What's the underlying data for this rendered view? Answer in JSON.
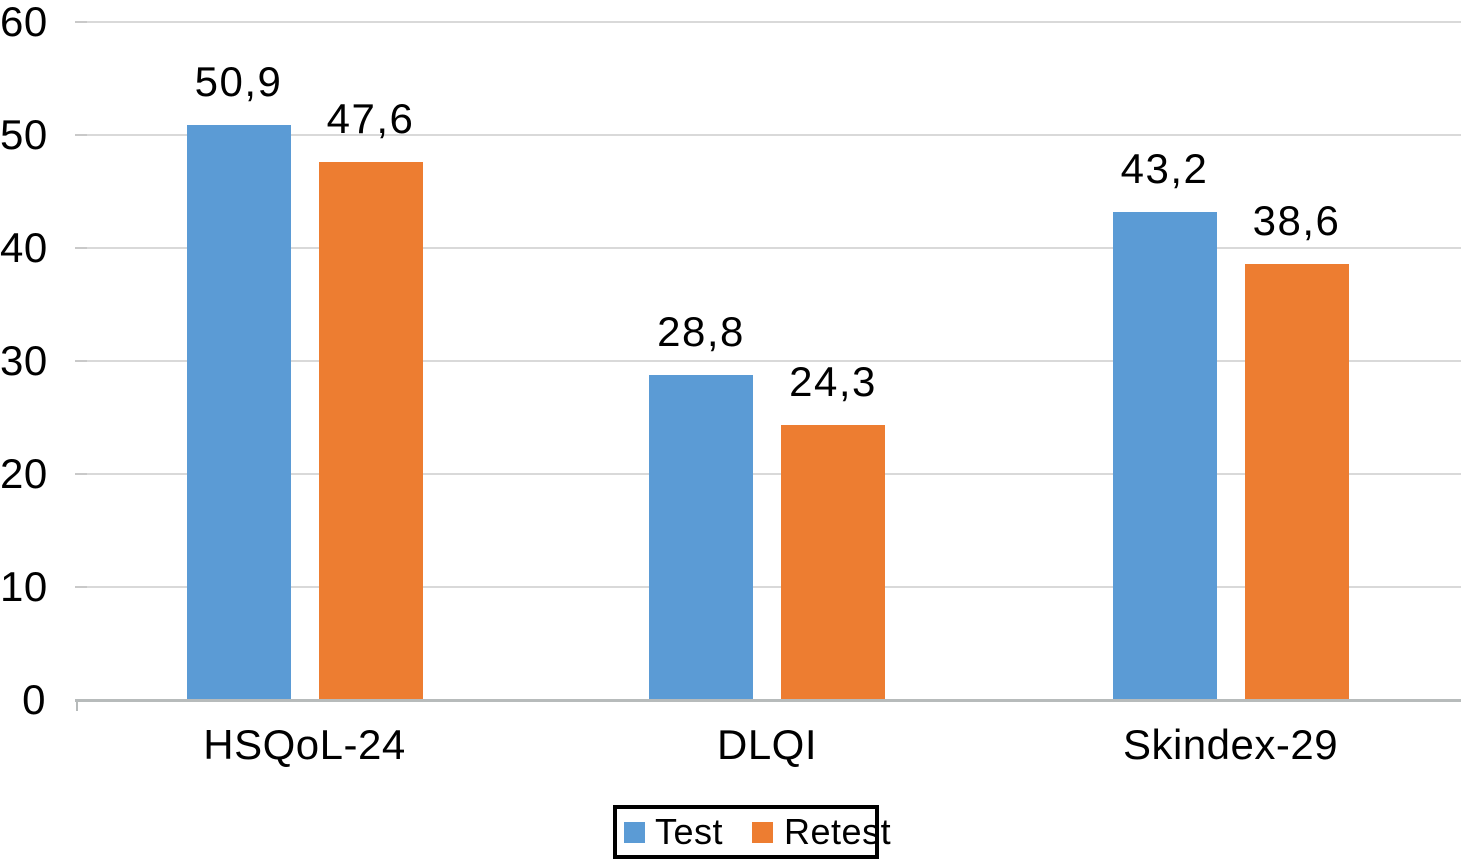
{
  "chart_data": {
    "type": "bar",
    "title": "",
    "xlabel": "",
    "ylabel": "",
    "categories": [
      "HSQoL-24",
      "DLQI",
      "Skindex-29"
    ],
    "series": [
      {
        "name": "Test",
        "color": "#5B9BD5",
        "values": [
          50.9,
          28.8,
          43.2
        ],
        "labels": [
          "50,9",
          "28,8",
          "43,2"
        ]
      },
      {
        "name": "Retest",
        "color": "#ED7D31",
        "values": [
          47.6,
          24.3,
          38.6
        ],
        "labels": [
          "47,6",
          "24,3",
          "38,6"
        ]
      }
    ],
    "ylim": [
      0,
      60
    ],
    "yticks": [
      0,
      10,
      20,
      30,
      40,
      50,
      60
    ],
    "ytick_labels": [
      "0",
      "10",
      "20",
      "30",
      "40",
      "50",
      "60"
    ],
    "decimal_separator": ",",
    "grid": true,
    "legend_position": "bottom-center",
    "colors": {
      "bar_test": "#5B9BD5",
      "bar_retest": "#ED7D31",
      "gridline": "#D9D9D9",
      "axis_line": "#B7BBBB",
      "text": "#000000",
      "legend_border": "#000000",
      "background": "#FFFFFF"
    }
  }
}
